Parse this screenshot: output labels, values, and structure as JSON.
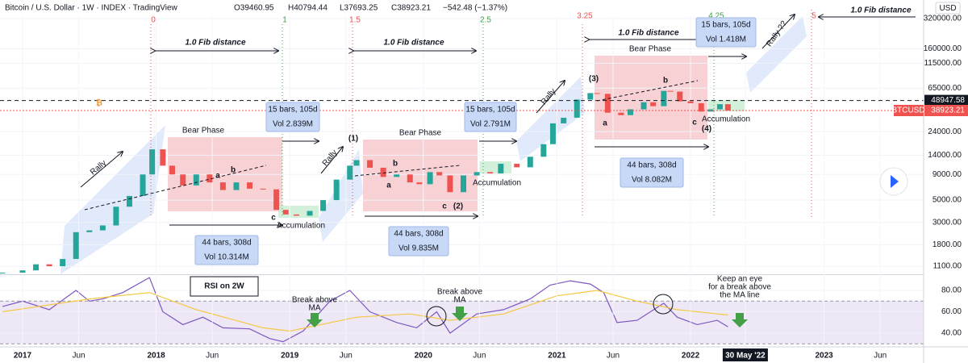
{
  "header": {
    "title": "Bitcoin / U.S. Dollar · 1W · INDEX · TradingView",
    "open": "O39460.95",
    "high": "H40794.44",
    "low": "L37693.25",
    "close": "C38923.21",
    "change": "−542.48 (−1.37%)"
  },
  "currency": "USD",
  "logo": "₿",
  "chart_data": {
    "type": "candlestick-line",
    "log_scale": true,
    "x": [
      2016.85,
      2017.0,
      2017.1,
      2017.2,
      2017.3,
      2017.4,
      2017.5,
      2017.6,
      2017.7,
      2017.8,
      2017.9,
      2017.97,
      2018.05,
      2018.12,
      2018.2,
      2018.3,
      2018.4,
      2018.5,
      2018.6,
      2018.7,
      2018.8,
      2018.9,
      2018.97,
      2019.05,
      2019.15,
      2019.25,
      2019.35,
      2019.45,
      2019.5,
      2019.6,
      2019.7,
      2019.8,
      2019.9,
      2019.97,
      2020.05,
      2020.12,
      2020.2,
      2020.3,
      2020.4,
      2020.5,
      2020.58,
      2020.7,
      2020.8,
      2020.9,
      2020.97,
      2021.05,
      2021.15,
      2021.25,
      2021.3,
      2021.38,
      2021.48,
      2021.55,
      2021.65,
      2021.72,
      2021.8,
      2021.85,
      2021.92,
      2022.0,
      2022.08,
      2022.15,
      2022.22,
      2022.28
    ],
    "series": [
      {
        "name": "BTCUSD",
        "color_up": "#26a69a",
        "color_down": "#ef5350",
        "values": [
          950,
          1000,
          1150,
          1100,
          1300,
          2400,
          2500,
          2800,
          4300,
          5500,
          9000,
          16000,
          11000,
          9000,
          7000,
          9000,
          7500,
          6300,
          7500,
          6500,
          6400,
          4000,
          3600,
          3500,
          3900,
          5000,
          8000,
          11000,
          12500,
          10500,
          8500,
          9000,
          7500,
          7200,
          9500,
          8800,
          6000,
          8800,
          9500,
          9200,
          11500,
          10600,
          13500,
          18000,
          29000,
          33000,
          50000,
          58000,
          57000,
          37000,
          35000,
          40000,
          47000,
          43000,
          61000,
          60000,
          48000,
          46000,
          38000,
          40000,
          45000,
          38923.21
        ]
      }
    ],
    "xlim": [
      2016.831,
      2023.745
    ],
    "xticks": [
      {
        "value": 2017,
        "label": "2017"
      },
      {
        "value": 2017.42,
        "label": "Jun"
      },
      {
        "value": 2018,
        "label": "2018"
      },
      {
        "value": 2018.42,
        "label": "Jun"
      },
      {
        "value": 2019,
        "label": "2019"
      },
      {
        "value": 2019.42,
        "label": "Jun"
      },
      {
        "value": 2020,
        "label": "2020"
      },
      {
        "value": 2020.42,
        "label": "Jun"
      },
      {
        "value": 2021,
        "label": "2021"
      },
      {
        "value": 2021.42,
        "label": "Jun"
      },
      {
        "value": 2022,
        "label": "2022"
      },
      {
        "value": 2022.41,
        "label": "30 May '22"
      },
      {
        "value": 2023,
        "label": "2023"
      },
      {
        "value": 2023.42,
        "label": "Jun"
      }
    ],
    "ylim": [
      915,
      338000
    ],
    "yticks": [
      {
        "value": 320000,
        "label": "320000.00"
      },
      {
        "value": 160000,
        "label": "160000.00"
      },
      {
        "value": 115000,
        "label": "115000.00"
      },
      {
        "value": 65000,
        "label": "65000.00"
      },
      {
        "value": 24000,
        "label": "24000.00"
      },
      {
        "value": 14000,
        "label": "14000.00"
      },
      {
        "value": 9000,
        "label": "9000.00"
      },
      {
        "value": 5000,
        "label": "5000.00"
      },
      {
        "value": 3000,
        "label": "3000.00"
      },
      {
        "value": 1800,
        "label": "1800.00"
      },
      {
        "value": 1100,
        "label": "1100.00"
      }
    ],
    "ref_line": {
      "value": 48947.58,
      "label": "48947.58"
    },
    "last_price": {
      "value": 38923.21,
      "label": "38923.21",
      "symbol": "BTCUSD"
    }
  },
  "rsi_chart": {
    "type": "line",
    "title": "RSI on 2W",
    "series": [
      {
        "name": "RSI",
        "color": "#7e57c2",
        "x": [
          2016.85,
          2017.0,
          2017.2,
          2017.4,
          2017.5,
          2017.6,
          2017.75,
          2017.95,
          2018.05,
          2018.2,
          2018.35,
          2018.5,
          2018.7,
          2018.85,
          2018.95,
          2019.1,
          2019.3,
          2019.45,
          2019.6,
          2019.8,
          2019.95,
          2020.1,
          2020.2,
          2020.4,
          2020.6,
          2020.8,
          2020.95,
          2021.1,
          2021.25,
          2021.35,
          2021.45,
          2021.6,
          2021.8,
          2021.9,
          2022.05,
          2022.2,
          2022.28
        ],
        "values": [
          65,
          70,
          62,
          80,
          70,
          72,
          78,
          92,
          60,
          48,
          55,
          45,
          44,
          35,
          32,
          42,
          70,
          80,
          60,
          50,
          45,
          60,
          40,
          58,
          62,
          72,
          85,
          89,
          86,
          78,
          50,
          52,
          68,
          55,
          48,
          52,
          46
        ]
      },
      {
        "name": "MA",
        "color": "#f5c842",
        "x": [
          2016.85,
          2017.5,
          2017.95,
          2018.3,
          2018.8,
          2019.0,
          2019.5,
          2019.9,
          2020.2,
          2020.6,
          2021.0,
          2021.3,
          2021.6,
          2021.9,
          2022.28
        ],
        "values": [
          60,
          72,
          78,
          62,
          45,
          42,
          55,
          58,
          52,
          58,
          75,
          80,
          70,
          62,
          57
        ]
      }
    ],
    "ylim": [
      27.2,
      93.6
    ],
    "yticks": [
      {
        "value": 80,
        "label": "80.00"
      },
      {
        "value": 60,
        "label": "60.00"
      },
      {
        "value": 40,
        "label": "40.00"
      }
    ],
    "band": [
      30,
      70
    ]
  },
  "fib_levels": [
    "0",
    "1",
    "1.5",
    "2.5",
    "3.25",
    "4.25",
    "5"
  ],
  "fib_distance": [
    "1.0 Fib distance",
    "1.0 Fib distance",
    "1.0 Fib distance",
    "1.0 Fib distance"
  ],
  "bear_phase": [
    "Bear Phase",
    "Bear Phase",
    "Bear Phase"
  ],
  "rally": [
    "Rally",
    "Rally",
    "Rally",
    "Rally ??"
  ],
  "waves": [
    "(1)",
    "(2)",
    "(3)",
    "(4)",
    "a",
    "b",
    "c",
    "a",
    "b",
    "c",
    "a",
    "b",
    "c"
  ],
  "accumulation": [
    "Accumulation",
    "Accumulation",
    "Accumulation"
  ],
  "short_boxes": [
    [
      "15 bars, 105d",
      "Vol 2.839M"
    ],
    [
      "15 bars, 105d",
      "Vol 2.791M"
    ],
    [
      "15 bars, 105d",
      "Vol 1.418M"
    ]
  ],
  "long_boxes": [
    [
      "44 bars, 308d",
      "Vol 10.314M"
    ],
    [
      "44 bars, 308d",
      "Vol 9.835M"
    ],
    [
      "44 bars, 308d",
      "Vol 8.082M"
    ]
  ],
  "notes": [
    [
      "Break above",
      "MA"
    ],
    [
      "Break above",
      "MA"
    ],
    [
      "Keep an eye",
      "for a break above",
      "the MA line"
    ]
  ]
}
